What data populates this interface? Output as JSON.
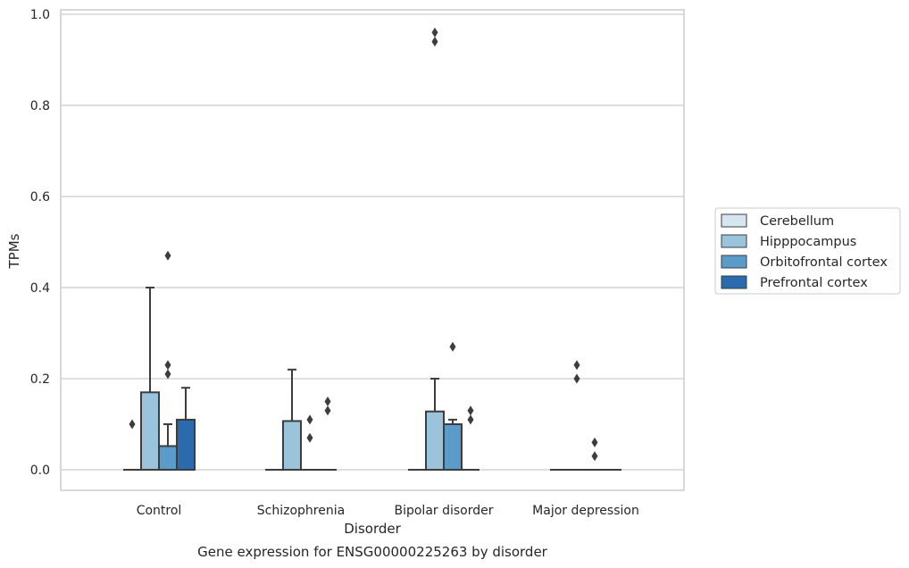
{
  "chart_data": {
    "type": "box",
    "title": "Gene expression for ENSG00000225263 by disorder",
    "xlabel": "Disorder",
    "ylabel": "TPMs",
    "ylim": [
      -0.045,
      1.01
    ],
    "yticks": [
      0.0,
      0.2,
      0.4,
      0.6,
      0.8,
      1.0
    ],
    "ytick_labels": [
      "0.0",
      "0.2",
      "0.4",
      "0.6",
      "0.8",
      "1.0"
    ],
    "grid": true,
    "legend_position": "right",
    "categories": [
      "Control",
      "Schizophrenia",
      "Bipolar disorder",
      "Major depression"
    ],
    "series": [
      {
        "name": "Cerebellum",
        "color": "#d6e5f2",
        "boxes": [
          {
            "q1": 0.0,
            "median": 0.0,
            "q3": 0.0,
            "whisker_low": 0.0,
            "whisker_high": 0.0,
            "outliers": [
              0.1
            ]
          },
          {
            "q1": 0.0,
            "median": 0.0,
            "q3": 0.0,
            "whisker_low": 0.0,
            "whisker_high": 0.0,
            "outliers": []
          },
          {
            "q1": 0.0,
            "median": 0.0,
            "q3": 0.0,
            "whisker_low": 0.0,
            "whisker_high": 0.0,
            "outliers": []
          },
          {
            "q1": 0.0,
            "median": 0.0,
            "q3": 0.0,
            "whisker_low": 0.0,
            "whisker_high": 0.0,
            "outliers": []
          }
        ]
      },
      {
        "name": "Hipppocampus",
        "color": "#9bc4dc",
        "boxes": [
          {
            "q1": 0.0,
            "median": 0.0,
            "q3": 0.17,
            "whisker_low": 0.0,
            "whisker_high": 0.4,
            "outliers": []
          },
          {
            "q1": 0.0,
            "median": 0.0,
            "q3": 0.107,
            "whisker_low": 0.0,
            "whisker_high": 0.22,
            "outliers": []
          },
          {
            "q1": 0.0,
            "median": 0.0,
            "q3": 0.128,
            "whisker_low": 0.0,
            "whisker_high": 0.2,
            "outliers": [
              0.94,
              0.96
            ]
          },
          {
            "q1": 0.0,
            "median": 0.0,
            "q3": 0.0,
            "whisker_low": 0.0,
            "whisker_high": 0.0,
            "outliers": [
              0.2,
              0.23
            ]
          }
        ]
      },
      {
        "name": "Orbitofrontal cortex",
        "color": "#5b9bc9",
        "boxes": [
          {
            "q1": 0.0,
            "median": 0.0,
            "q3": 0.052,
            "whisker_low": 0.0,
            "whisker_high": 0.1,
            "outliers": [
              0.21,
              0.23,
              0.47
            ]
          },
          {
            "q1": 0.0,
            "median": 0.0,
            "q3": 0.0,
            "whisker_low": 0.0,
            "whisker_high": 0.0,
            "outliers": [
              0.07,
              0.11
            ]
          },
          {
            "q1": 0.0,
            "median": 0.0,
            "q3": 0.1,
            "whisker_low": 0.0,
            "whisker_high": 0.11,
            "outliers": [
              0.27
            ]
          },
          {
            "q1": 0.0,
            "median": 0.0,
            "q3": 0.0,
            "whisker_low": 0.0,
            "whisker_high": 0.0,
            "outliers": [
              0.03,
              0.06
            ]
          }
        ]
      },
      {
        "name": "Prefrontal cortex",
        "color": "#2a6aad",
        "boxes": [
          {
            "q1": 0.0,
            "median": 0.0,
            "q3": 0.11,
            "whisker_low": 0.0,
            "whisker_high": 0.18,
            "outliers": []
          },
          {
            "q1": 0.0,
            "median": 0.0,
            "q3": 0.0,
            "whisker_low": 0.0,
            "whisker_high": 0.0,
            "outliers": [
              0.13,
              0.15
            ]
          },
          {
            "q1": 0.0,
            "median": 0.0,
            "q3": 0.0,
            "whisker_low": 0.0,
            "whisker_high": 0.0,
            "outliers": [
              0.11,
              0.13
            ]
          },
          {
            "q1": 0.0,
            "median": 0.0,
            "q3": 0.0,
            "whisker_low": 0.0,
            "whisker_high": 0.0,
            "outliers": []
          }
        ]
      }
    ]
  }
}
